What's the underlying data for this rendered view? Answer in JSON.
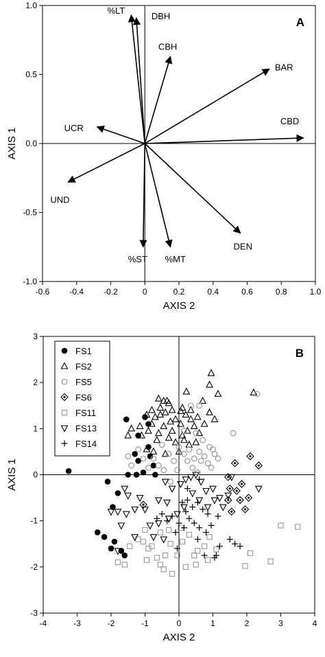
{
  "chart_data": [
    {
      "type": "biplot",
      "panel_label": "A",
      "xlabel": "AXIS 2",
      "ylabel": "AXIS 1",
      "xlim": [
        -0.6,
        1.0
      ],
      "ylim": [
        -1.0,
        1.0
      ],
      "xticks": [
        "-0.6",
        "-0.4",
        "-0.2",
        "0",
        "0.2",
        "0.4",
        "0.6",
        "0.8",
        "1.0"
      ],
      "yticks": [
        "-1.0",
        "-0.5",
        "0.0",
        "0.5",
        "1.0"
      ],
      "vectors": [
        {
          "label": "%LT",
          "x": -0.08,
          "y": 0.93
        },
        {
          "label": "DBH",
          "x": -0.05,
          "y": 0.91
        },
        {
          "label": "CBH",
          "x": 0.15,
          "y": 0.63
        },
        {
          "label": "BAR",
          "x": 0.73,
          "y": 0.54
        },
        {
          "label": "CBD",
          "x": 0.93,
          "y": 0.04
        },
        {
          "label": "UCR",
          "x": -0.28,
          "y": 0.12
        },
        {
          "label": "UND",
          "x": -0.45,
          "y": -0.28
        },
        {
          "label": "%ST",
          "x": -0.01,
          "y": -0.75
        },
        {
          "label": "%MT",
          "x": 0.15,
          "y": -0.75
        },
        {
          "label": "DEN",
          "x": 0.56,
          "y": -0.65
        }
      ]
    },
    {
      "type": "scatter",
      "panel_label": "B",
      "xlabel": "AXIS 2",
      "ylabel": "AXIS 1",
      "xlim": [
        -4,
        4
      ],
      "ylim": [
        -3,
        3
      ],
      "xticks": [
        "-4",
        "-3",
        "-2",
        "-1",
        "0",
        "1",
        "2",
        "3",
        "4"
      ],
      "yticks": [
        "-3",
        "-2",
        "-1",
        "0",
        "1",
        "2",
        "3"
      ],
      "legend_position": "top-left",
      "series": [
        {
          "name": "FS1",
          "marker": "filled-circle",
          "color": "#000000",
          "points": [
            [
              -3.25,
              0.08
            ],
            [
              -2.1,
              -0.15
            ],
            [
              -1.55,
              1.2
            ],
            [
              -1.2,
              0.85
            ],
            [
              -0.85,
              0.4
            ],
            [
              -0.75,
              0.2
            ],
            [
              -1.0,
              1.25
            ],
            [
              -0.9,
              1.1
            ],
            [
              -1.3,
              0.45
            ],
            [
              -1.5,
              0.0
            ],
            [
              -1.05,
              0.05
            ],
            [
              -1.25,
              0.0
            ],
            [
              -0.7,
              0.0
            ],
            [
              -1.8,
              -0.4
            ],
            [
              -2.0,
              -1.6
            ],
            [
              -1.9,
              -1.45
            ],
            [
              -1.7,
              -1.65
            ],
            [
              -2.2,
              -1.35
            ],
            [
              -2.4,
              -1.25
            ],
            [
              -1.6,
              -1.75
            ],
            [
              -1.95,
              -0.7
            ],
            [
              -1.2,
              0.3
            ],
            [
              -0.9,
              0.6
            ]
          ]
        },
        {
          "name": "FS2",
          "marker": "triangle-up",
          "color": "#000000",
          "points": [
            [
              0.95,
              2.2
            ],
            [
              0.9,
              1.95
            ],
            [
              2.2,
              1.78
            ],
            [
              1.15,
              1.75
            ],
            [
              0.22,
              1.8
            ],
            [
              -0.6,
              1.65
            ],
            [
              -0.45,
              1.6
            ],
            [
              -0.3,
              1.55
            ],
            [
              -0.55,
              1.45
            ],
            [
              -0.95,
              1.3
            ],
            [
              -0.8,
              1.4
            ],
            [
              -0.7,
              1.25
            ],
            [
              -0.55,
              1.3
            ],
            [
              -0.4,
              1.35
            ],
            [
              -0.2,
              1.4
            ],
            [
              0.05,
              1.38
            ],
            [
              0.1,
              1.45
            ],
            [
              0.35,
              1.4
            ],
            [
              -1.4,
              1.0
            ],
            [
              -1.5,
              0.85
            ],
            [
              -1.1,
              0.85
            ],
            [
              -0.9,
              0.95
            ],
            [
              -0.8,
              1.1
            ],
            [
              -0.6,
              0.9
            ],
            [
              -0.45,
              1.05
            ],
            [
              -0.25,
              1.15
            ],
            [
              -0.1,
              1.2
            ],
            [
              0.05,
              1.1
            ],
            [
              0.2,
              1.3
            ],
            [
              0.35,
              1.2
            ],
            [
              0.45,
              1.05
            ],
            [
              0.6,
              0.9
            ],
            [
              0.75,
              1.1
            ],
            [
              0.9,
              1.35
            ],
            [
              1.05,
              1.2
            ],
            [
              -0.65,
              0.75
            ],
            [
              -0.3,
              0.8
            ],
            [
              -0.1,
              0.7
            ],
            [
              0.15,
              0.75
            ],
            [
              0.3,
              0.65
            ],
            [
              0.5,
              0.7
            ],
            [
              -0.95,
              0.55
            ],
            [
              -0.75,
              0.5
            ],
            [
              -0.4,
              0.45
            ],
            [
              0.0,
              0.5
            ],
            [
              -0.2,
              0.95
            ],
            [
              0.25,
              0.95
            ],
            [
              0.55,
              1.25
            ],
            [
              -1.15,
              1.05
            ],
            [
              -0.35,
              1.6
            ],
            [
              0.7,
              1.6
            ],
            [
              0.1,
              0.85
            ]
          ]
        },
        {
          "name": "FS5",
          "marker": "open-circle",
          "color": "#999999",
          "points": [
            [
              2.3,
              1.75
            ],
            [
              1.6,
              0.9
            ],
            [
              -1.5,
              0.4
            ],
            [
              -1.4,
              0.2
            ],
            [
              -1.2,
              0.55
            ],
            [
              -1.05,
              0.35
            ],
            [
              -0.9,
              0.15
            ],
            [
              -0.75,
              0.35
            ],
            [
              -0.6,
              0.2
            ],
            [
              -0.45,
              0.1
            ],
            [
              -0.3,
              0.45
            ],
            [
              -0.15,
              0.3
            ],
            [
              0.0,
              0.6
            ],
            [
              0.15,
              0.45
            ],
            [
              0.3,
              0.55
            ],
            [
              0.45,
              0.35
            ],
            [
              0.6,
              0.5
            ],
            [
              0.75,
              0.4
            ],
            [
              0.9,
              0.6
            ],
            [
              1.05,
              0.45
            ],
            [
              1.15,
              0.35
            ],
            [
              0.5,
              0.9
            ],
            [
              0.7,
              0.75
            ],
            [
              0.85,
              0.25
            ],
            [
              0.4,
              0.15
            ],
            [
              0.25,
              0.3
            ],
            [
              -0.25,
              -0.15
            ],
            [
              -0.05,
              0.1
            ],
            [
              0.55,
              0.05
            ],
            [
              1.0,
              0.55
            ],
            [
              0.35,
              1.5
            ],
            [
              0.6,
              1.5
            ],
            [
              -0.5,
              0.65
            ],
            [
              0.15,
              0.95
            ],
            [
              0.65,
              0.3
            ],
            [
              0.95,
              0.15
            ]
          ]
        },
        {
          "name": "FS6",
          "marker": "diamond-dot",
          "color": "#000000",
          "points": [
            [
              2.1,
              0.4
            ],
            [
              2.35,
              0.2
            ],
            [
              1.65,
              0.25
            ],
            [
              1.45,
              -0.05
            ],
            [
              1.85,
              -0.2
            ],
            [
              1.7,
              -0.35
            ],
            [
              1.45,
              -0.55
            ],
            [
              1.55,
              -0.8
            ],
            [
              1.95,
              -0.75
            ],
            [
              2.05,
              -0.5
            ],
            [
              1.8,
              -0.55
            ],
            [
              -1.05,
              -0.65
            ],
            [
              1.5,
              -0.3
            ]
          ]
        },
        {
          "name": "FS11",
          "marker": "open-square",
          "color": "#999999",
          "points": [
            [
              3.0,
              -1.1
            ],
            [
              3.5,
              -1.13
            ],
            [
              2.7,
              -1.88
            ],
            [
              2.1,
              -1.7
            ],
            [
              1.95,
              -1.98
            ],
            [
              1.1,
              -1.62
            ],
            [
              0.55,
              -1.65
            ],
            [
              0.1,
              -1.45
            ],
            [
              0.05,
              -1.15
            ],
            [
              -0.25,
              -1.5
            ],
            [
              -0.05,
              -1.75
            ],
            [
              0.3,
              -1.3
            ],
            [
              0.75,
              -1.55
            ],
            [
              0.85,
              -1.85
            ],
            [
              0.5,
              -1.95
            ],
            [
              0.45,
              -1.75
            ],
            [
              -0.4,
              -1.75
            ],
            [
              -0.55,
              -1.95
            ],
            [
              -0.65,
              -1.8
            ],
            [
              -0.8,
              -1.55
            ],
            [
              -0.9,
              -1.6
            ],
            [
              -1.05,
              -1.45
            ],
            [
              -1.2,
              -1.4
            ],
            [
              -1.45,
              -1.55
            ],
            [
              -1.6,
              -1.95
            ],
            [
              -1.8,
              -1.9
            ],
            [
              -0.95,
              -1.85
            ],
            [
              -0.45,
              -2.05
            ],
            [
              -0.2,
              -2.15
            ],
            [
              0.2,
              -2.0
            ],
            [
              -0.3,
              -1.2
            ],
            [
              -1.0,
              -1.2
            ],
            [
              -0.55,
              -1.25
            ],
            [
              0.9,
              -1.35
            ]
          ]
        },
        {
          "name": "FS13",
          "marker": "triangle-down",
          "color": "#000000",
          "points": [
            [
              -1.8,
              -1.65
            ],
            [
              -1.5,
              -0.45
            ],
            [
              -1.6,
              -0.3
            ],
            [
              -1.15,
              -0.5
            ],
            [
              -1.0,
              -0.75
            ],
            [
              -1.3,
              -0.75
            ],
            [
              -0.6,
              -0.55
            ],
            [
              -0.35,
              -0.6
            ],
            [
              -0.2,
              -0.3
            ],
            [
              0.05,
              -0.2
            ],
            [
              0.2,
              -0.1
            ],
            [
              0.35,
              -0.05
            ],
            [
              0.5,
              0.0
            ],
            [
              0.65,
              -0.15
            ],
            [
              0.8,
              -0.35
            ],
            [
              1.0,
              -0.3
            ],
            [
              1.2,
              -0.5
            ],
            [
              1.45,
              -0.45
            ],
            [
              -2.0,
              -0.8
            ],
            [
              -1.8,
              -0.8
            ],
            [
              -1.55,
              -0.85
            ],
            [
              -0.85,
              -1.1
            ],
            [
              -0.6,
              -1.05
            ],
            [
              -0.3,
              -0.95
            ],
            [
              -0.05,
              -0.85
            ],
            [
              0.15,
              -0.7
            ],
            [
              0.4,
              -0.4
            ],
            [
              0.6,
              -0.55
            ],
            [
              0.85,
              -0.7
            ],
            [
              1.05,
              -0.55
            ],
            [
              -0.45,
              -1.4
            ],
            [
              -0.75,
              -1.35
            ],
            [
              -1.3,
              -1.35
            ],
            [
              -1.7,
              -1.1
            ],
            [
              -0.4,
              -0.15
            ],
            [
              1.55,
              -0.05
            ],
            [
              2.35,
              -0.3
            ],
            [
              1.3,
              -0.7
            ]
          ]
        },
        {
          "name": "FS14",
          "marker": "plus",
          "color": "#000000",
          "points": [
            [
              0.1,
              -0.6
            ],
            [
              0.25,
              -0.55
            ],
            [
              0.4,
              -0.7
            ],
            [
              0.55,
              -0.6
            ],
            [
              0.7,
              -0.75
            ],
            [
              0.85,
              -0.85
            ],
            [
              1.15,
              -0.9
            ],
            [
              0.3,
              -0.95
            ],
            [
              0.45,
              -1.05
            ],
            [
              0.15,
              -1.15
            ],
            [
              0.6,
              -1.15
            ],
            [
              0.8,
              -1.25
            ],
            [
              0.95,
              -1.1
            ],
            [
              -0.1,
              -1.25
            ],
            [
              -0.35,
              -1.0
            ],
            [
              -0.5,
              -0.85
            ],
            [
              -0.2,
              -0.9
            ],
            [
              0.0,
              -1.05
            ],
            [
              0.2,
              -0.8
            ],
            [
              1.5,
              -1.4
            ],
            [
              1.65,
              -1.5
            ],
            [
              1.8,
              -1.55
            ],
            [
              1.2,
              -1.55
            ],
            [
              -0.05,
              -1.6
            ],
            [
              0.75,
              -1.75
            ],
            [
              1.1,
              -1.75
            ],
            [
              1.05,
              -1.8
            ],
            [
              0.55,
              -1.4
            ],
            [
              0.25,
              -0.3
            ],
            [
              0.6,
              -0.1
            ],
            [
              -0.65,
              -0.95
            ]
          ]
        }
      ]
    }
  ]
}
